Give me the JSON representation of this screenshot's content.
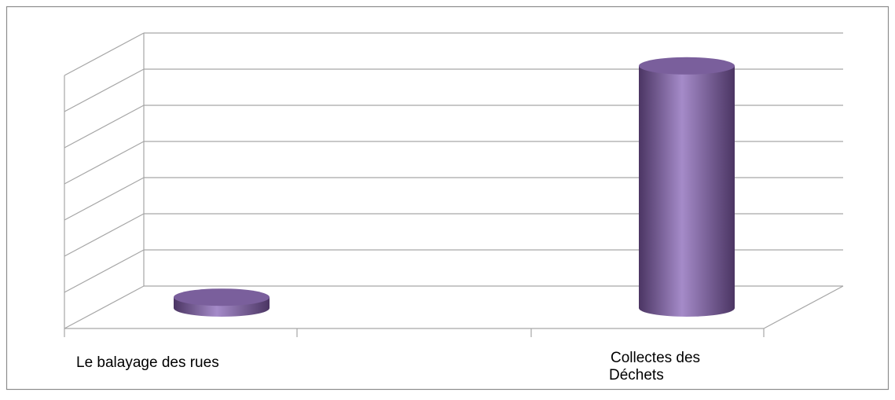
{
  "chart_data": {
    "type": "bar",
    "style": "3d-cylinder",
    "categories": [
      "Le balayage des rues",
      "Collectes des Déchets"
    ],
    "series": [
      {
        "values": [
          0.3,
          6.7
        ]
      }
    ],
    "ylim": [
      0,
      7
    ],
    "y_gridlines": 7,
    "grid": true,
    "legend": false,
    "colors": {
      "bar_main": "#8064a2",
      "bar_light": "#a58bc9",
      "bar_dark": "#4b3563",
      "bar_top": "#7a5f9c",
      "grid": "#a6a6a6",
      "frame": "#8c8c8c",
      "text": "#000000"
    }
  }
}
